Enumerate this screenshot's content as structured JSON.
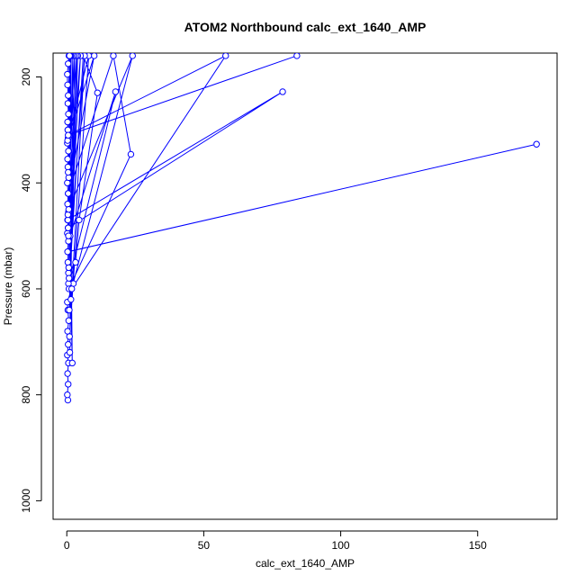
{
  "chart_data": {
    "type": "line",
    "title": "ATOM2 Northbound calc_ext_1640_AMP",
    "xlabel": "calc_ext_1640_AMP",
    "ylabel": "Pressure (mbar)",
    "xlim": [
      -5,
      179
    ],
    "ylim": [
      1035,
      155
    ],
    "y_reversed": true,
    "xticks": [
      0,
      50,
      100,
      150
    ],
    "yticks": [
      200,
      400,
      600,
      800,
      1000
    ],
    "grid": false,
    "legend": "none",
    "colors": {
      "series": "#0000ff"
    },
    "series": [
      {
        "points": [
          [
            0.4,
            810
          ],
          [
            0.2,
            800
          ],
          [
            0.5,
            780
          ],
          [
            0.3,
            760
          ],
          [
            0.6,
            740
          ],
          [
            0.2,
            725
          ],
          [
            0.5,
            705
          ],
          [
            0.3,
            680
          ],
          [
            0.7,
            660
          ],
          [
            0.4,
            640
          ],
          [
            0.2,
            625
          ],
          [
            2.4,
            590
          ],
          [
            0.6,
            570
          ],
          [
            0.4,
            550
          ],
          [
            0.5,
            530
          ],
          [
            171.5,
            327
          ],
          [
            0.3,
            530
          ],
          [
            0.6,
            510
          ],
          [
            0.2,
            495
          ],
          [
            0.5,
            485
          ],
          [
            0.3,
            470
          ],
          [
            78.8,
            228
          ],
          [
            0.5,
            485
          ],
          [
            0.4,
            470
          ],
          [
            0.6,
            455
          ],
          [
            0.3,
            440
          ],
          [
            0.5,
            420
          ],
          [
            0.2,
            400
          ],
          [
            0.7,
            390
          ],
          [
            0.4,
            370
          ],
          [
            0.3,
            355
          ],
          [
            0.6,
            340
          ],
          [
            0.2,
            325
          ],
          [
            0.5,
            315
          ],
          [
            0.4,
            300
          ],
          [
            0.3,
            285
          ],
          [
            0.6,
            270
          ],
          [
            0.4,
            250
          ],
          [
            0.5,
            235
          ],
          [
            0.3,
            215
          ],
          [
            0.2,
            195
          ],
          [
            0.5,
            175
          ],
          [
            0.8,
            160
          ],
          [
            2.0,
            740
          ],
          [
            1.5,
            620
          ],
          [
            1.2,
            500
          ],
          [
            17.8,
            228
          ],
          [
            0.6,
            590
          ],
          [
            3.2,
            550
          ],
          [
            4.5,
            470
          ],
          [
            11.2,
            230
          ],
          [
            6.0,
            160
          ],
          [
            0.8,
            600
          ],
          [
            23.4,
            346
          ],
          [
            17.0,
            160
          ],
          [
            0.5,
            420
          ],
          [
            10.0,
            160
          ],
          [
            0.3,
            320
          ],
          [
            8.0,
            160
          ],
          [
            1.0,
            690
          ],
          [
            6.5,
            160
          ],
          [
            0.7,
            560
          ],
          [
            5.0,
            160
          ],
          [
            0.4,
            460
          ],
          [
            4.0,
            160
          ],
          [
            0.9,
            640
          ],
          [
            3.5,
            160
          ],
          [
            0.5,
            380
          ],
          [
            2.8,
            160
          ],
          [
            1.1,
            720
          ],
          [
            2.2,
            160
          ],
          [
            0.6,
            500
          ],
          [
            1.6,
            160
          ],
          [
            0.8,
            580
          ],
          [
            1.3,
            160
          ],
          [
            0.4,
            300
          ],
          [
            1.0,
            160
          ],
          [
            0.7,
            450
          ],
          [
            24.0,
            160
          ],
          [
            1.8,
            600
          ],
          [
            58.0,
            160
          ],
          [
            0.5,
            310
          ],
          [
            84.0,
            160
          ]
        ]
      }
    ]
  }
}
